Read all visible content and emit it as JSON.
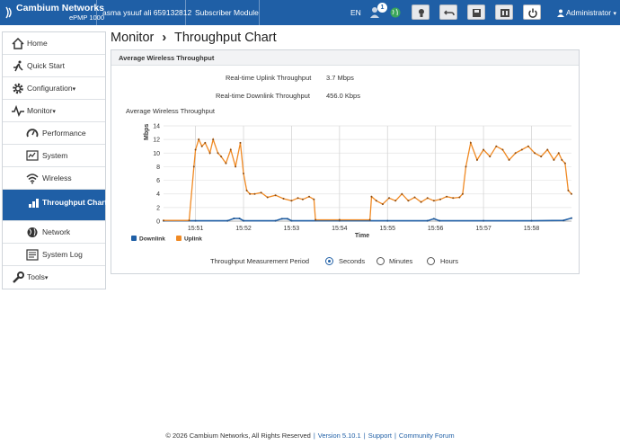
{
  "header": {
    "brand_name": "Cambium Networks",
    "brand_model": "ePMP 1000",
    "device_name": "asma ysuuf ali 659132812",
    "device_mode": "Subscriber Module",
    "language": "EN",
    "notification_count": "1",
    "user": "Administrator",
    "color": "#1f5fa6"
  },
  "sidebar": {
    "items": [
      {
        "label": "Home",
        "icon": "home-icon"
      },
      {
        "label": "Quick Start",
        "icon": "running-person-icon"
      },
      {
        "label": "Configuration",
        "icon": "gear-icon"
      },
      {
        "label": "Monitor",
        "icon": "pulse-icon"
      },
      {
        "label": "Performance",
        "icon": "gauge-icon"
      },
      {
        "label": "System",
        "icon": "system-icon"
      },
      {
        "label": "Wireless",
        "icon": "wifi-icon"
      },
      {
        "label": "Throughput Chart",
        "icon": "bar-chart-icon"
      },
      {
        "label": "Network",
        "icon": "globe-icon"
      },
      {
        "label": "System Log",
        "icon": "log-icon"
      },
      {
        "label": "Tools",
        "icon": "wrench-icon"
      }
    ]
  },
  "breadcrumb": {
    "section": "Monitor",
    "separator": "›",
    "page": "Throughput Chart"
  },
  "panel": {
    "title": "Average Wireless Throughput",
    "uplink_label": "Real-time Uplink Throughput",
    "uplink_value": "3.7 Mbps",
    "downlink_label": "Real-time Downlink Throughput",
    "downlink_value": "456.0 Kbps",
    "chart_title": "Average Wireless Throughput"
  },
  "chart_data": {
    "type": "line",
    "ylabel": "Mbps",
    "xlabel": "Time",
    "ylim": [
      0,
      14
    ],
    "yticks": [
      0,
      2,
      4,
      6,
      8,
      10,
      12,
      14
    ],
    "x_range": [
      "15:50:20",
      "15:58:50"
    ],
    "xtick_labels": [
      "15:51",
      "15:52",
      "15:53",
      "15:54",
      "15:55",
      "15:56",
      "15:57",
      "15:58"
    ],
    "grid": true,
    "legend_position": "bottom-left",
    "series": [
      {
        "name": "Downlink",
        "color": "#1f5fa6",
        "x": [
          "15:50:20",
          "15:51:00",
          "15:51:40",
          "15:51:48",
          "15:51:55",
          "15:52:00",
          "15:52:40",
          "15:52:48",
          "15:52:55",
          "15:53:00",
          "15:54:00",
          "15:55:00",
          "15:55:50",
          "15:55:58",
          "15:56:05",
          "15:57:00",
          "15:58:00",
          "15:58:40",
          "15:58:50"
        ],
        "values": [
          0.05,
          0.05,
          0.05,
          0.4,
          0.4,
          0.05,
          0.05,
          0.35,
          0.35,
          0.05,
          0.05,
          0.05,
          0.05,
          0.35,
          0.05,
          0.05,
          0.05,
          0.1,
          0.45
        ]
      },
      {
        "name": "Uplink",
        "color": "#f08a24",
        "x": [
          "15:50:20",
          "15:50:52",
          "15:50:58",
          "15:51:00",
          "15:51:04",
          "15:51:08",
          "15:51:12",
          "15:51:18",
          "15:51:22",
          "15:51:28",
          "15:51:32",
          "15:51:38",
          "15:51:44",
          "15:51:50",
          "15:51:56",
          "15:52:00",
          "15:52:04",
          "15:52:08",
          "15:52:14",
          "15:52:22",
          "15:52:30",
          "15:52:40",
          "15:52:50",
          "15:53:00",
          "15:53:08",
          "15:53:14",
          "15:53:22",
          "15:53:28",
          "15:53:30",
          "15:54:00",
          "15:54:38",
          "15:54:40",
          "15:54:46",
          "15:54:54",
          "15:55:02",
          "15:55:10",
          "15:55:18",
          "15:55:26",
          "15:55:34",
          "15:55:42",
          "15:55:50",
          "15:55:58",
          "15:56:06",
          "15:56:14",
          "15:56:22",
          "15:56:30",
          "15:56:34",
          "15:56:38",
          "15:56:44",
          "15:56:52",
          "15:57:00",
          "15:57:08",
          "15:57:16",
          "15:57:24",
          "15:57:32",
          "15:57:40",
          "15:57:48",
          "15:57:56",
          "15:58:04",
          "15:58:12",
          "15:58:20",
          "15:58:28",
          "15:58:34",
          "15:58:38",
          "15:58:42",
          "15:58:46",
          "15:58:50"
        ],
        "values": [
          0.1,
          0.1,
          8.0,
          10.5,
          12.0,
          11.0,
          11.5,
          10.0,
          12.0,
          10.0,
          9.5,
          8.5,
          10.5,
          8.0,
          11.5,
          7.0,
          4.5,
          4.0,
          4.0,
          4.2,
          3.5,
          3.8,
          3.3,
          3.0,
          3.4,
          3.2,
          3.6,
          3.2,
          0.2,
          0.2,
          0.2,
          3.6,
          3.0,
          2.5,
          3.4,
          3.0,
          4.0,
          3.0,
          3.5,
          2.8,
          3.4,
          3.0,
          3.2,
          3.6,
          3.4,
          3.5,
          4.0,
          8.0,
          11.5,
          9.0,
          10.5,
          9.5,
          11.0,
          10.5,
          9.0,
          10.0,
          10.5,
          11.0,
          10.0,
          9.5,
          10.5,
          9.0,
          10.0,
          9.0,
          8.5,
          4.5,
          4.0
        ]
      }
    ]
  },
  "period": {
    "label": "Throughput Measurement Period",
    "options": [
      "Seconds",
      "Minutes",
      "Hours"
    ],
    "selected": "Seconds"
  },
  "footer": {
    "copyright": "© 2026 Cambium Networks, All Rights Reserved",
    "version": "Version 5.10.1",
    "support": "Support",
    "forum": "Community Forum"
  }
}
